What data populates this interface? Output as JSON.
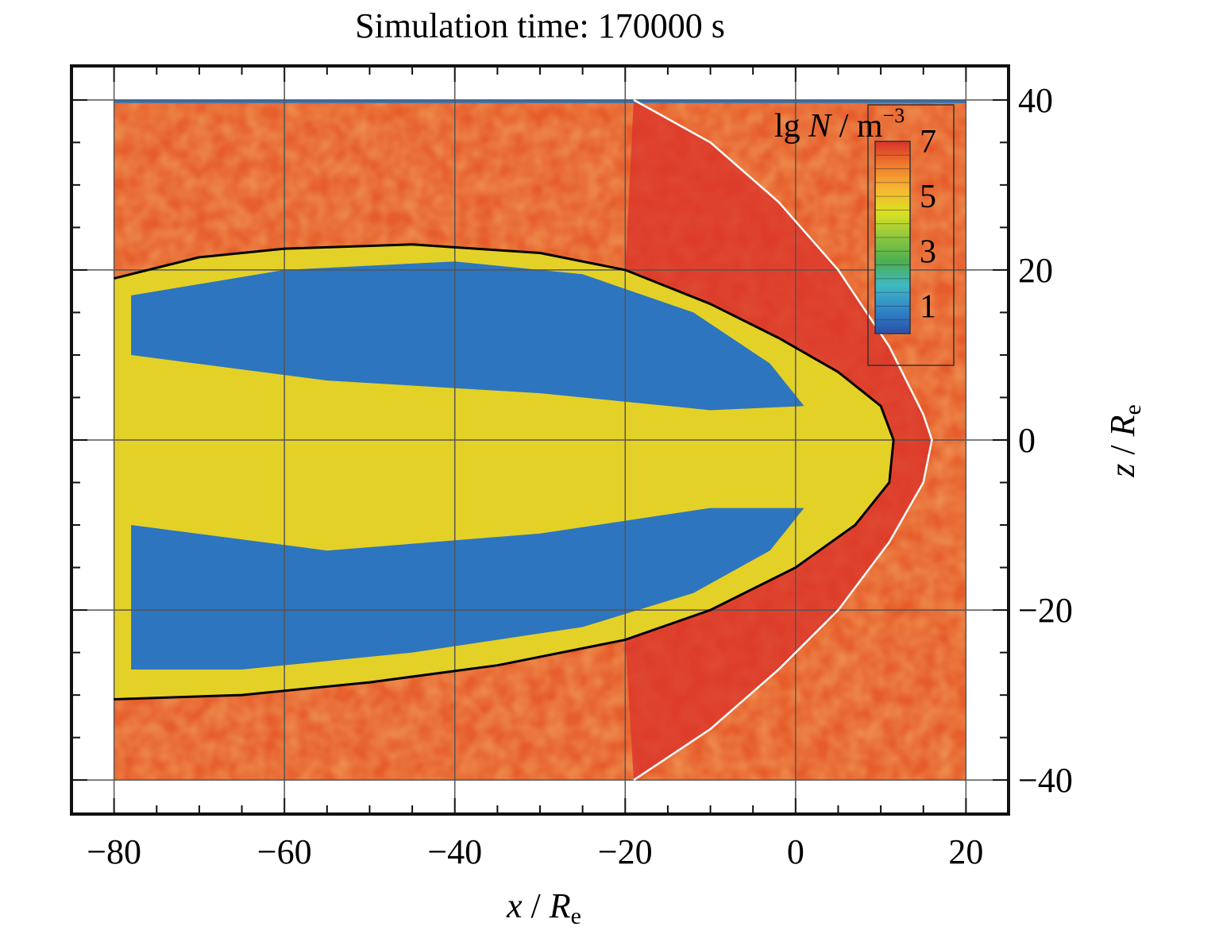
{
  "chart_data": {
    "type": "heatmap",
    "title": "Simulation time: 170000 s",
    "xlabel": {
      "var": "x",
      "sep": " / ",
      "unit": "R",
      "unit_sub": "e"
    },
    "ylabel": {
      "var": "z",
      "sep": " / ",
      "unit": "R",
      "unit_sub": "e"
    },
    "xlim": [
      -85,
      25
    ],
    "ylim": [
      -44,
      44
    ],
    "data_x_range": [
      -80,
      20
    ],
    "data_z_range": [
      -40,
      40
    ],
    "x_ticks": [
      -80,
      -60,
      -40,
      -20,
      0,
      20
    ],
    "x_tick_labels": [
      "−80",
      "−60",
      "−40",
      "−20",
      "0",
      "20"
    ],
    "y_ticks": [
      40,
      20,
      0,
      -20,
      -40
    ],
    "y_tick_labels": [
      "40",
      "20",
      "0",
      "−20",
      "−40"
    ],
    "grid": true,
    "colorbar": {
      "title_parts": [
        "lg ",
        "N",
        " / m",
        "−3"
      ],
      "range": [
        0,
        7
      ],
      "tick_values": [
        7,
        5,
        3,
        1
      ],
      "tick_labels": [
        "7",
        "5",
        "3",
        "1"
      ],
      "placement": "top-right",
      "colors": [
        "#2a4fa8",
        "#2f86c8",
        "#3fb9c4",
        "#4caf50",
        "#8cc63f",
        "#d9e021",
        "#f7b733",
        "#f07c2c",
        "#d9322a"
      ]
    },
    "regions": {
      "background_level": 6.5,
      "sheath_level": 7.0,
      "lobe_level": 0.6,
      "plasma_sheet_level": 4.7
    },
    "magnetopause": {
      "color": "#000000",
      "points": [
        [
          -80,
          19
        ],
        [
          -70,
          21.5
        ],
        [
          -60,
          22.5
        ],
        [
          -45,
          23
        ],
        [
          -30,
          22
        ],
        [
          -20,
          20
        ],
        [
          -10,
          16
        ],
        [
          -2,
          12
        ],
        [
          5,
          8
        ],
        [
          10,
          4
        ],
        [
          11.5,
          0
        ],
        [
          11,
          -5
        ],
        [
          7,
          -10
        ],
        [
          0,
          -15
        ],
        [
          -10,
          -20
        ],
        [
          -20,
          -23.5
        ],
        [
          -35,
          -26.5
        ],
        [
          -50,
          -28.5
        ],
        [
          -65,
          -30
        ],
        [
          -80,
          -30.5
        ]
      ]
    },
    "bow_shock": {
      "color": "#ffffff",
      "points": [
        [
          -19,
          40
        ],
        [
          -10,
          35
        ],
        [
          -2,
          28
        ],
        [
          5,
          20
        ],
        [
          11,
          11
        ],
        [
          15,
          3
        ],
        [
          16,
          0
        ],
        [
          15,
          -5
        ],
        [
          11,
          -12
        ],
        [
          5,
          -20
        ],
        [
          -2,
          -27
        ],
        [
          -10,
          -34
        ],
        [
          -19,
          -40
        ]
      ]
    }
  }
}
